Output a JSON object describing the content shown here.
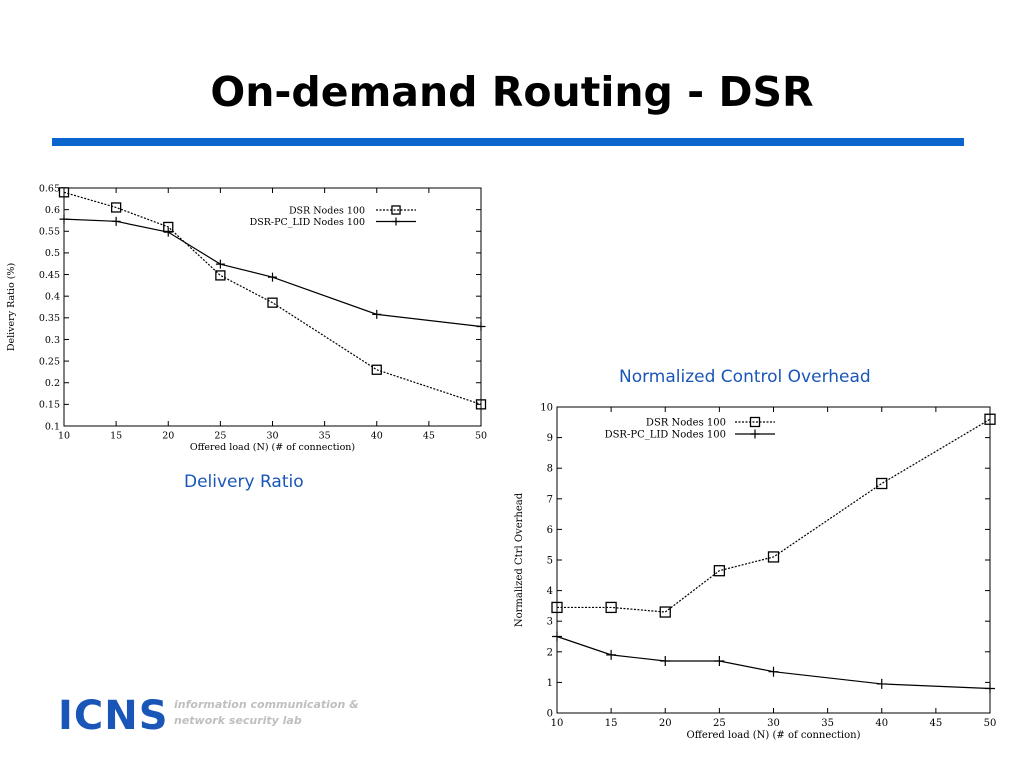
{
  "slide": {
    "title": "On-demand Routing - DSR",
    "accent_color": "#0a66cc",
    "caption_color": "#1a56b8"
  },
  "captions": {
    "delivery_ratio": "Delivery Ratio",
    "control_overhead": "Normalized Control Overhead"
  },
  "logo": {
    "mark": "ICNS",
    "line1": "information communication &",
    "line2": "network security lab"
  },
  "chart_data": [
    {
      "type": "line",
      "title": "",
      "xlabel": "Offered load (N) (# of connection)",
      "ylabel": "Delivery Ratio (%)",
      "xlim": [
        10,
        50
      ],
      "ylim": [
        0.1,
        0.65
      ],
      "xticks": [
        "10",
        "15",
        "20",
        "25",
        "30",
        "35",
        "40",
        "45",
        "50"
      ],
      "yticks": [
        "0.1",
        "0.15",
        "0.2",
        "0.25",
        "0.3",
        "0.35",
        "0.4",
        "0.45",
        "0.5",
        "0.55",
        "0.6",
        "0.65"
      ],
      "legend_position": "top-right",
      "grid": false,
      "series": [
        {
          "name": "DSR Nodes 100",
          "marker": "square",
          "dash": "dotted",
          "x": [
            10,
            15,
            20,
            25,
            30,
            40,
            50
          ],
          "y": [
            0.64,
            0.605,
            0.56,
            0.448,
            0.385,
            0.23,
            0.15
          ]
        },
        {
          "name": "DSR-PC_LID Nodes 100",
          "marker": "plus",
          "dash": "solid",
          "x": [
            10,
            15,
            20,
            25,
            30,
            40,
            50
          ],
          "y": [
            0.578,
            0.573,
            0.548,
            0.474,
            0.444,
            0.358,
            0.33
          ]
        }
      ]
    },
    {
      "type": "line",
      "title": "",
      "xlabel": "Offered load (N) (# of connection)",
      "ylabel": "Normalized Ctrl Overhead",
      "xlim": [
        10,
        50
      ],
      "ylim": [
        0,
        10
      ],
      "xticks": [
        "10",
        "15",
        "20",
        "25",
        "30",
        "35",
        "40",
        "45",
        "50"
      ],
      "yticks": [
        "0",
        "1",
        "2",
        "3",
        "4",
        "5",
        "6",
        "7",
        "8",
        "9",
        "10"
      ],
      "legend_position": "top-left",
      "grid": false,
      "series": [
        {
          "name": "DSR Nodes 100",
          "marker": "square",
          "dash": "dotted",
          "x": [
            10,
            15,
            20,
            25,
            30,
            40,
            50
          ],
          "y": [
            3.45,
            3.45,
            3.3,
            4.65,
            5.1,
            7.5,
            9.6
          ]
        },
        {
          "name": "DSR-PC_LID Nodes 100",
          "marker": "plus",
          "dash": "solid",
          "x": [
            10,
            15,
            20,
            25,
            30,
            40,
            50
          ],
          "y": [
            2.5,
            1.9,
            1.7,
            1.7,
            1.35,
            0.95,
            0.8
          ]
        }
      ]
    }
  ]
}
